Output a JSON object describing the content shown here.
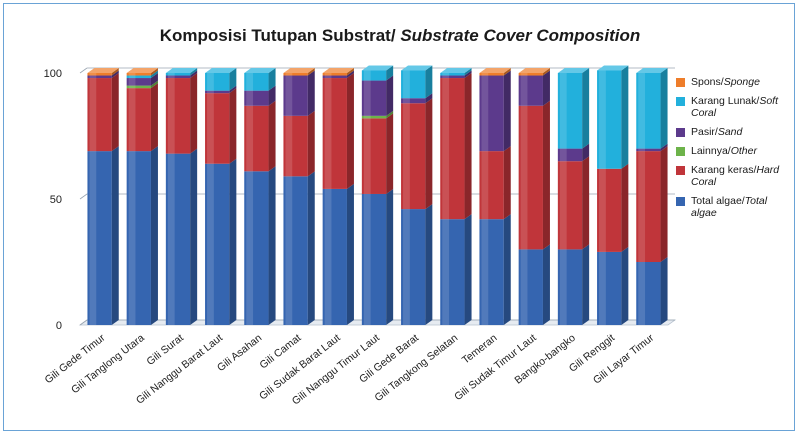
{
  "chart_data": {
    "type": "bar",
    "stacked": true,
    "title": "Komposisi Tutupan Substrat/",
    "title_italic": "Substrate Cover Composition",
    "xlabel": "",
    "ylabel": "",
    "ylim": [
      0,
      100
    ],
    "yticks": [
      0,
      50,
      100
    ],
    "grid": true,
    "legend_position": "right",
    "categories": [
      "Gili Gede Timur",
      "Gili Tanglong Utara",
      "Gili Surat",
      "Gili Nanggu Barat Laut",
      "Gili Asahan",
      "Gili Camat",
      "Gili Sudak Barat Laut",
      "Gili Nanggu Timur Laut",
      "Gili Gede Barat",
      "Gili Tangkong Selatan",
      "Temeran",
      "Gili Sudak Timur Laut",
      "Bangko-bangko",
      "Gili Renggit",
      "Gili Layar Timur"
    ],
    "series": [
      {
        "name": "Total algae/",
        "name_italic": "Total algae",
        "color": "#3565b0",
        "values": [
          69,
          69,
          68,
          64,
          61,
          59,
          54,
          52,
          46,
          42,
          42,
          30,
          30,
          29,
          25
        ]
      },
      {
        "name": "Karang keras/",
        "name_italic": "Hard Coral",
        "color": "#c0353a",
        "values": [
          29,
          25,
          30,
          28,
          26,
          24,
          44,
          30,
          42,
          56,
          27,
          57,
          35,
          33,
          44
        ]
      },
      {
        "name": "Lainnya/",
        "name_italic": "Other",
        "color": "#6db34a",
        "values": [
          0,
          1,
          0,
          0,
          0,
          0,
          0,
          1,
          0,
          0,
          0,
          0,
          0,
          0,
          0
        ]
      },
      {
        "name": "Pasir/",
        "name_italic": "Sand",
        "color": "#5c3a8c",
        "values": [
          1,
          3,
          1,
          1,
          6,
          16,
          1,
          14,
          2,
          1,
          30,
          12,
          5,
          0,
          1
        ]
      },
      {
        "name": "Karang Lunak/",
        "name_italic": "Soft Coral",
        "color": "#22b0dc",
        "values": [
          0,
          1,
          1,
          7,
          7,
          0,
          0,
          4,
          11,
          1,
          0,
          0,
          30,
          39,
          30
        ]
      },
      {
        "name": "Spons/",
        "name_italic": "Sponge",
        "color": "#ee7d2a",
        "values": [
          1,
          1,
          0,
          0,
          0,
          1,
          1,
          0,
          0,
          0,
          1,
          1,
          0,
          0,
          0
        ]
      }
    ]
  }
}
